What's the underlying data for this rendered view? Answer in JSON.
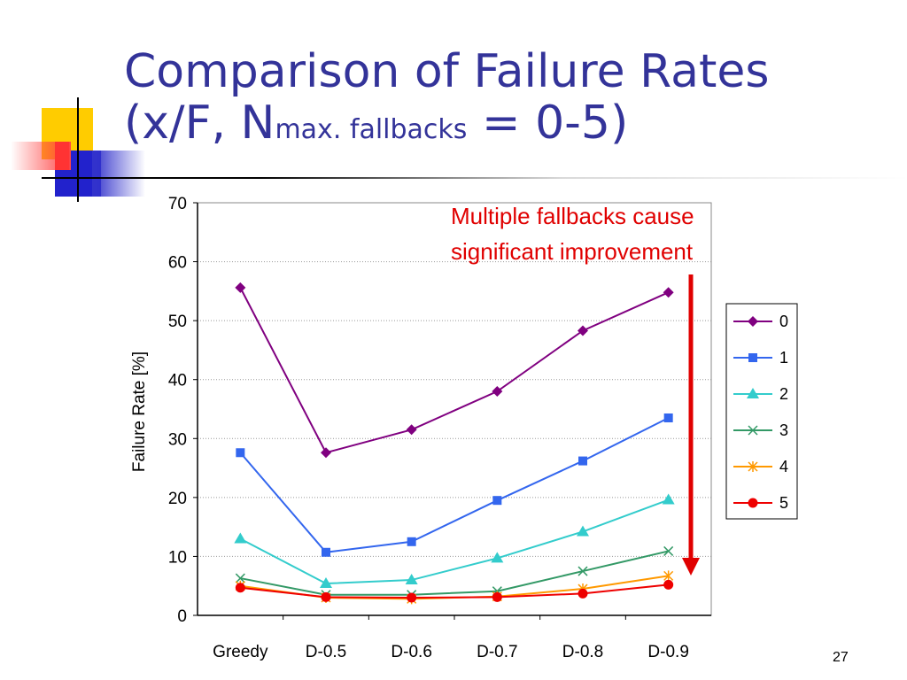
{
  "slide": {
    "title_line1": "Comparison of Failure Rates",
    "title_line2_a": "(x/F, N",
    "title_line2_sub": "max. fallbacks",
    "title_line2_b": " = 0-5)",
    "page_number": "27",
    "annotation_line1": "Multiple fallbacks cause",
    "annotation_line2": "significant improvement",
    "annotation_color": "#e00000",
    "title_color": "#333399"
  },
  "chart_data": {
    "type": "line",
    "title": "",
    "xlabel": "",
    "ylabel": "Failure Rate [%]",
    "ylim": [
      0,
      70
    ],
    "yticks": [
      0,
      10,
      20,
      30,
      40,
      50,
      60,
      70
    ],
    "grid": "horizontal dotted",
    "legend_position": "right",
    "categories": [
      "Greedy",
      "D-0.5",
      "D-0.6",
      "D-0.7",
      "D-0.8",
      "D-0.9"
    ],
    "series": [
      {
        "name": "0",
        "color": "#800080",
        "marker": "diamond",
        "values": [
          55.6,
          27.6,
          31.5,
          38.0,
          48.3,
          54.8
        ]
      },
      {
        "name": "1",
        "color": "#3366ee",
        "marker": "square",
        "values": [
          27.6,
          10.7,
          12.5,
          19.5,
          26.2,
          33.5
        ]
      },
      {
        "name": "2",
        "color": "#33cccc",
        "marker": "triangle",
        "values": [
          13.0,
          5.4,
          6.0,
          9.7,
          14.2,
          19.6
        ]
      },
      {
        "name": "3",
        "color": "#339966",
        "marker": "x",
        "values": [
          6.3,
          3.5,
          3.5,
          4.1,
          7.5,
          10.9
        ]
      },
      {
        "name": "4",
        "color": "#ff9900",
        "marker": "star",
        "values": [
          5.0,
          3.0,
          2.8,
          3.2,
          4.5,
          6.7
        ]
      },
      {
        "name": "5",
        "color": "#ee0000",
        "marker": "circle",
        "values": [
          4.7,
          3.1,
          3.0,
          3.1,
          3.7,
          5.2
        ]
      }
    ]
  }
}
